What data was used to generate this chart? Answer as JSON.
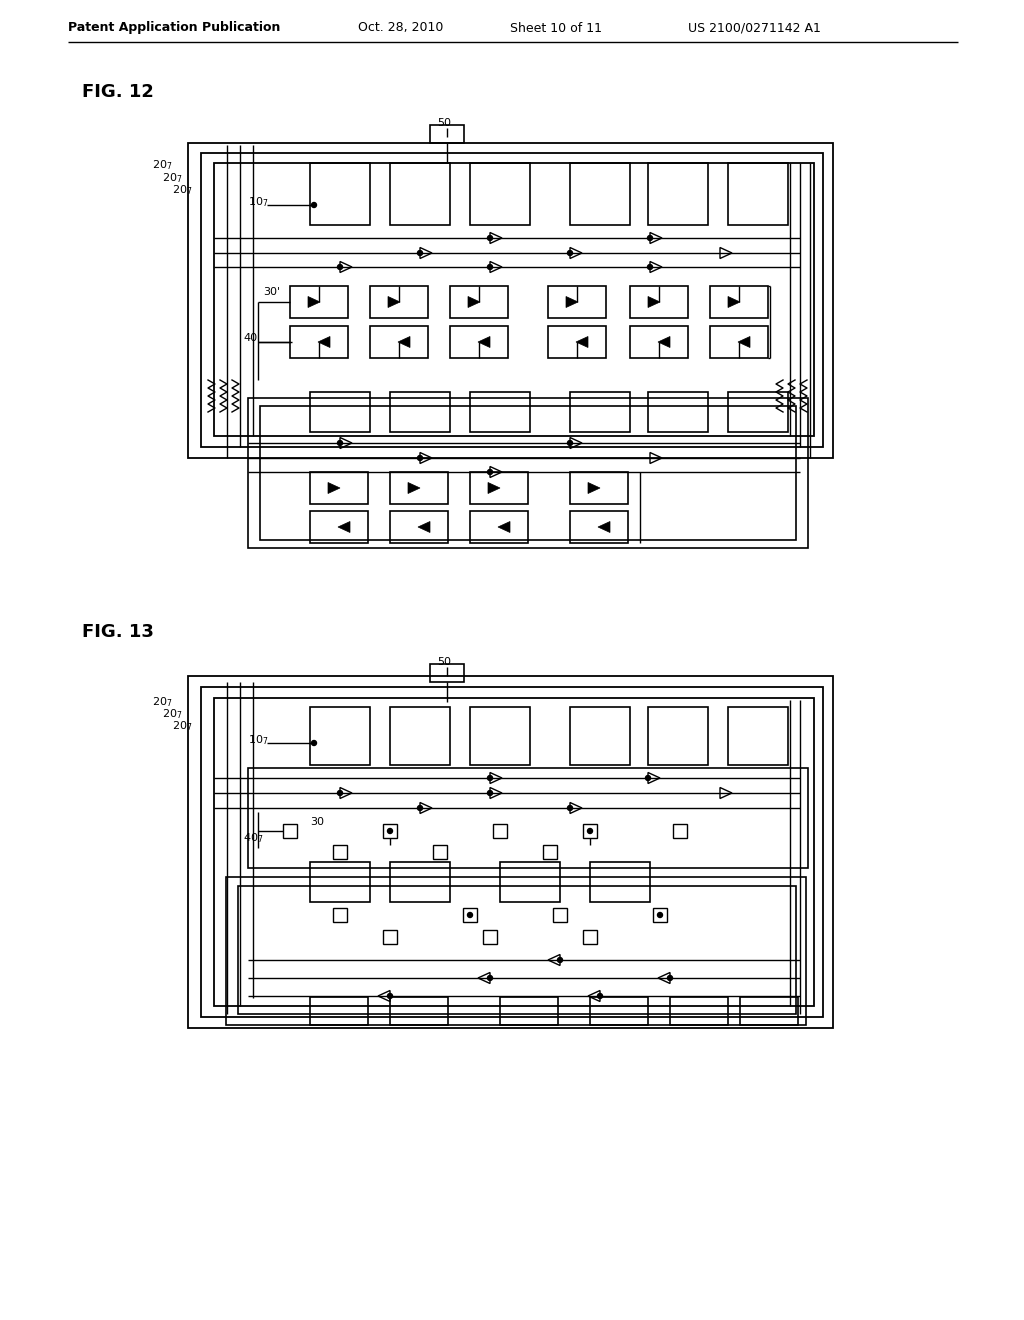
{
  "background_color": "#ffffff",
  "header_text": "Patent Application Publication",
  "header_date": "Oct. 28, 2010",
  "header_sheet": "Sheet 10 of 11",
  "header_patent": "US 2100/0271142 A1",
  "fig12_label": "FIG. 12",
  "fig13_label": "FIG. 13",
  "line_color": "#000000",
  "lw_thin": 0.8,
  "lw_med": 1.2,
  "lw_thick": 1.5
}
